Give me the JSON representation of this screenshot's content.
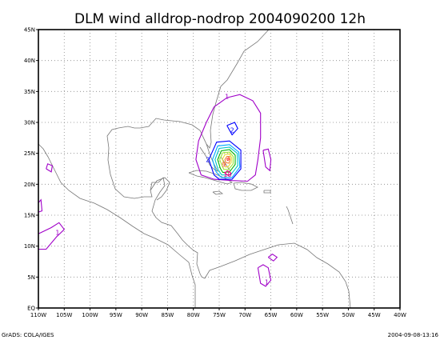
{
  "title": "DLM wind alldrop-nodrop 2004090200 12h",
  "footer": {
    "left": "GrADS: COLA/IGES",
    "right": "2004-09-08-13:16"
  },
  "map": {
    "lon_range": [
      -110,
      -40
    ],
    "lat_range": [
      0,
      45
    ],
    "lon_ticks": [
      {
        "v": -110,
        "label": "110W"
      },
      {
        "v": -105,
        "label": "105W"
      },
      {
        "v": -100,
        "label": "100W"
      },
      {
        "v": -95,
        "label": "95W"
      },
      {
        "v": -90,
        "label": "90W"
      },
      {
        "v": -85,
        "label": "85W"
      },
      {
        "v": -80,
        "label": "80W"
      },
      {
        "v": -75,
        "label": "75W"
      },
      {
        "v": -70,
        "label": "70W"
      },
      {
        "v": -65,
        "label": "65W"
      },
      {
        "v": -60,
        "label": "60W"
      },
      {
        "v": -55,
        "label": "55W"
      },
      {
        "v": -50,
        "label": "50W"
      },
      {
        "v": -45,
        "label": "45W"
      },
      {
        "v": -40,
        "label": "40W"
      }
    ],
    "lat_ticks": [
      {
        "v": 0,
        "label": "EQ"
      },
      {
        "v": 5,
        "label": "5N"
      },
      {
        "v": 10,
        "label": "10N"
      },
      {
        "v": 15,
        "label": "15N"
      },
      {
        "v": 20,
        "label": "20N"
      },
      {
        "v": 25,
        "label": "25N"
      },
      {
        "v": 30,
        "label": "30N"
      },
      {
        "v": 35,
        "label": "35N"
      },
      {
        "v": 40,
        "label": "40N"
      },
      {
        "v": 45,
        "label": "45N"
      }
    ],
    "contours": [
      {
        "level": "1",
        "color": "#a000c8",
        "points": [
          [
            -78.5,
            21.5
          ],
          [
            -79.5,
            24
          ],
          [
            -79,
            27
          ],
          [
            -77.5,
            30
          ],
          [
            -76,
            32.5
          ],
          [
            -73.5,
            34
          ],
          [
            -71,
            34.5
          ],
          [
            -68.5,
            33.5
          ],
          [
            -67,
            31.5
          ],
          [
            -67,
            27.5
          ],
          [
            -67.5,
            24
          ],
          [
            -68,
            21.5
          ],
          [
            -69.5,
            20.5
          ],
          [
            -72.5,
            20.6
          ],
          [
            -76,
            20.8
          ],
          [
            -78.5,
            21.5
          ]
        ],
        "label_at": [
          -73.5,
          34.2
        ]
      },
      {
        "level": "1",
        "color": "#a000c8",
        "points": [
          [
            -66.5,
            25.5
          ],
          [
            -65.5,
            25.7
          ],
          [
            -65,
            24
          ],
          [
            -65.2,
            22.2
          ],
          [
            -66,
            22.8
          ],
          [
            -66.5,
            25.5
          ]
        ]
      },
      {
        "level": "1",
        "color": "#a000c8",
        "points": [
          [
            -108.5,
            22.5
          ],
          [
            -107.5,
            22
          ],
          [
            -107.3,
            23
          ],
          [
            -108.2,
            23.3
          ],
          [
            -108.5,
            22.5
          ]
        ]
      },
      {
        "level": "1",
        "color": "#a000c8",
        "points": [
          [
            -110,
            17
          ],
          [
            -109.5,
            17.5
          ],
          [
            -109.3,
            15.7
          ],
          [
            -110,
            15.5
          ]
        ]
      },
      {
        "level": "1",
        "color": "#a000c8",
        "points": [
          [
            -110,
            12
          ],
          [
            -107.5,
            13
          ],
          [
            -106,
            13.8
          ],
          [
            -105,
            12.7
          ],
          [
            -106.5,
            11.5
          ],
          [
            -108.5,
            9.5
          ],
          [
            -110,
            9.5
          ]
        ],
        "label_at": [
          -106.3,
          12.2
        ]
      },
      {
        "level": "1",
        "color": "#a000c8",
        "points": [
          [
            -67.5,
            6.5
          ],
          [
            -67,
            4
          ],
          [
            -66,
            3.5
          ],
          [
            -65,
            4.5
          ],
          [
            -65.5,
            6.5
          ],
          [
            -66.5,
            7
          ],
          [
            -67.5,
            6.5
          ]
        ],
        "label_at": [
          -65.8,
          4.2
        ]
      },
      {
        "level": "1",
        "color": "#a000c8",
        "points": [
          [
            -65.5,
            8.2
          ],
          [
            -64.5,
            7.6
          ],
          [
            -63.8,
            8.2
          ],
          [
            -64.7,
            8.7
          ],
          [
            -65.5,
            8.2
          ]
        ]
      },
      {
        "level": "2",
        "color": "#0000ff",
        "points": [
          [
            -76,
            21.5
          ],
          [
            -77,
            24
          ],
          [
            -75.5,
            26.8
          ],
          [
            -73,
            27
          ],
          [
            -70.8,
            25.5
          ],
          [
            -70.8,
            22.5
          ],
          [
            -72.5,
            20.8
          ],
          [
            -75,
            20.8
          ],
          [
            -76,
            21.5
          ]
        ],
        "label_at": [
          -77.2,
          24
        ]
      },
      {
        "level": "2",
        "color": "#0000ff",
        "points": [
          [
            -73.5,
            29.5
          ],
          [
            -72,
            30
          ],
          [
            -71.4,
            29
          ],
          [
            -72.5,
            28
          ],
          [
            -73.5,
            29.5
          ]
        ],
        "label_at": [
          -72.5,
          28.8
        ]
      },
      {
        "level": "3",
        "color": "#00aaff",
        "points": [
          [
            -75.6,
            22
          ],
          [
            -76.3,
            24
          ],
          [
            -75.3,
            26.2
          ],
          [
            -73,
            26.4
          ],
          [
            -71.2,
            25.2
          ],
          [
            -71,
            22.8
          ],
          [
            -72.5,
            21.1
          ],
          [
            -74.6,
            21.1
          ],
          [
            -75.6,
            22
          ]
        ]
      },
      {
        "level": "4",
        "color": "#00c8c8",
        "points": [
          [
            -75.2,
            22.3
          ],
          [
            -75.8,
            24
          ],
          [
            -75,
            25.8
          ],
          [
            -73,
            26
          ],
          [
            -71.5,
            25
          ],
          [
            -71.4,
            23
          ],
          [
            -72.8,
            21.5
          ],
          [
            -74.5,
            21.5
          ],
          [
            -75.2,
            22.3
          ]
        ]
      },
      {
        "level": "5",
        "color": "#00b400",
        "points": [
          [
            -74.8,
            22.6
          ],
          [
            -75.3,
            24
          ],
          [
            -74.6,
            25.4
          ],
          [
            -73,
            25.6
          ],
          [
            -71.9,
            24.7
          ],
          [
            -71.9,
            23.2
          ],
          [
            -73,
            22
          ],
          [
            -74.3,
            21.9
          ],
          [
            -74.8,
            22.6
          ]
        ]
      },
      {
        "level": "6",
        "color": "#a0e632",
        "points": [
          [
            -74.4,
            22.9
          ],
          [
            -74.9,
            24
          ],
          [
            -74.3,
            25.1
          ],
          [
            -73,
            25.2
          ],
          [
            -72.3,
            24.5
          ],
          [
            -72.3,
            23.3
          ],
          [
            -73.2,
            22.4
          ],
          [
            -74.1,
            22.4
          ],
          [
            -74.4,
            22.9
          ]
        ]
      },
      {
        "level": "7",
        "color": "#e6dc32",
        "points": [
          [
            -74,
            23.2
          ],
          [
            -74.4,
            24
          ],
          [
            -73.9,
            24.8
          ],
          [
            -73,
            24.9
          ],
          [
            -72.6,
            24.3
          ],
          [
            -72.7,
            23.5
          ],
          [
            -73.3,
            22.8
          ],
          [
            -73.8,
            22.8
          ],
          [
            -74,
            23.2
          ]
        ]
      },
      {
        "level": "8",
        "color": "#f08228",
        "points": [
          [
            -73.7,
            23.5
          ],
          [
            -73.9,
            24
          ],
          [
            -73.5,
            24.5
          ],
          [
            -73,
            24.5
          ],
          [
            -72.9,
            24
          ],
          [
            -73.1,
            23.4
          ],
          [
            -73.7,
            23.5
          ]
        ]
      },
      {
        "level": "9",
        "color": "#fa3c3c",
        "points": [
          [
            -73.4,
            23.8
          ],
          [
            -73.5,
            24.1
          ],
          [
            -73.2,
            24.3
          ],
          [
            -73.1,
            24
          ],
          [
            -73.4,
            23.8
          ]
        ],
        "label_at": [
          -74.1,
          23.2
        ]
      },
      {
        "level": "10",
        "color": "#f00082",
        "points": [
          [
            -73.4,
            22.2
          ],
          [
            -73.9,
            21.8
          ],
          [
            -73.2,
            21.4
          ],
          [
            -72.7,
            21.8
          ],
          [
            -73.4,
            22.2
          ]
        ],
        "label_at": [
          -73.4,
          21.6
        ]
      }
    ]
  }
}
